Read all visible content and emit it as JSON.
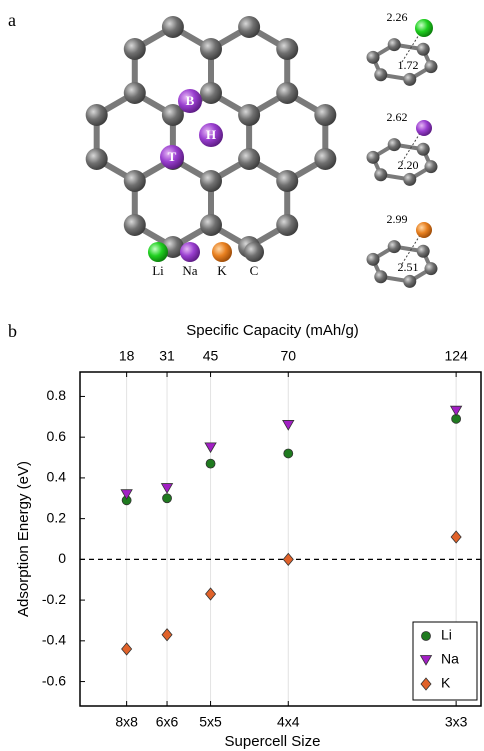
{
  "figure": {
    "panel_a": {
      "label": "a",
      "sites": [
        "B",
        "H",
        "T"
      ],
      "legend": [
        "Li",
        "Na",
        "K",
        "C"
      ],
      "distances": [
        [
          "2.26",
          "1.72"
        ],
        [
          "2.62",
          "2.20"
        ],
        [
          "2.99",
          "2.51"
        ]
      ]
    },
    "panel_b_label": "b"
  },
  "chart_data": {
    "type": "scatter",
    "x_label": "Supercell Size",
    "x2_label": "Specific Capacity (mAh/g)",
    "y_label": "Adsorption Energy (eV)",
    "x": [
      18,
      31,
      45,
      70,
      124
    ],
    "series": [
      {
        "name": "Li",
        "color": "#1f7a1f",
        "marker": "circle",
        "values": [
          0.29,
          0.3,
          0.47,
          0.52,
          0.69
        ]
      },
      {
        "name": "Na",
        "color": "#a21fc4",
        "marker": "triangle-down",
        "values": [
          0.32,
          0.35,
          0.55,
          0.66,
          0.73
        ]
      },
      {
        "name": "K",
        "color": "#e0622a",
        "marker": "diamond",
        "values": [
          -0.44,
          -0.37,
          -0.17,
          0,
          0.11
        ]
      }
    ],
    "xlim": [
      3,
      132
    ],
    "xticks": [
      {
        "value": 18,
        "label": "8x8"
      },
      {
        "value": 31,
        "label": "6x6"
      },
      {
        "value": 45,
        "label": "5x5"
      },
      {
        "value": 70,
        "label": "4x4"
      },
      {
        "value": 124,
        "label": "3x3"
      }
    ],
    "x2ticks": [
      18,
      31,
      45,
      70,
      124
    ],
    "ylim": [
      -0.72,
      0.92
    ],
    "yticks": [
      -0.6,
      -0.4,
      -0.2,
      0,
      0.2,
      0.4,
      0.6,
      0.8
    ],
    "reference_line": 0,
    "grid": true,
    "legend_position": "lower right"
  }
}
